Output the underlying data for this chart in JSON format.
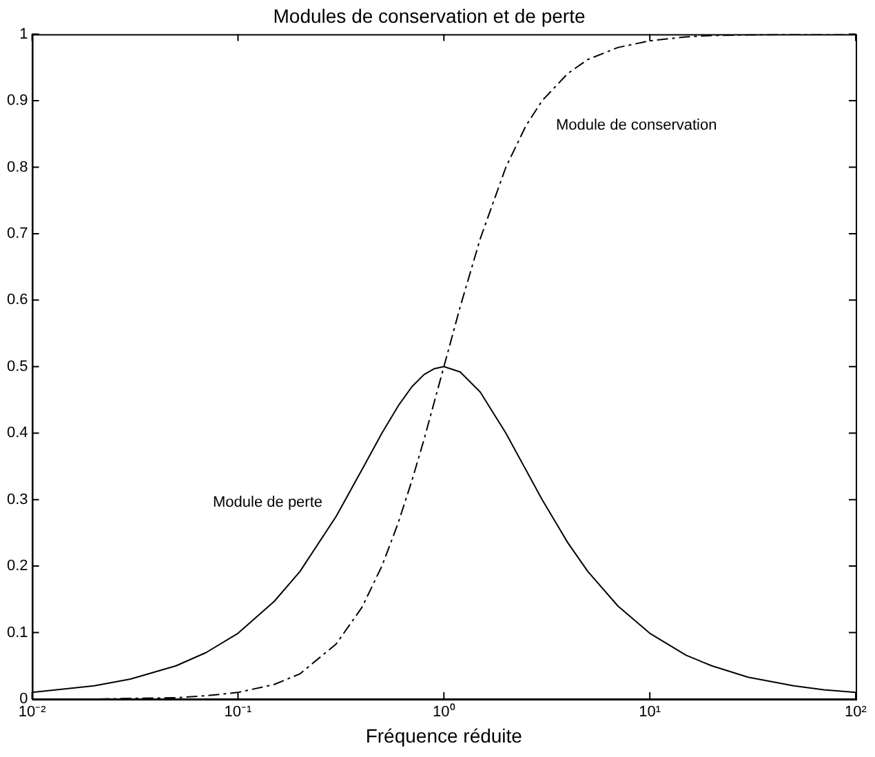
{
  "chart_data": {
    "type": "line",
    "title": "Modules de conservation et de perte",
    "xlabel": "Fréquence réduite",
    "log": "x",
    "x": [
      0.01,
      0.02,
      0.03,
      0.05,
      0.07,
      0.1,
      0.15,
      0.2,
      0.3,
      0.4,
      0.5,
      0.6,
      0.7,
      0.8,
      0.9,
      1,
      1.2,
      1.5,
      2,
      2.5,
      3,
      4,
      5,
      7,
      10,
      15,
      20,
      30,
      50,
      70,
      100
    ],
    "series": [
      {
        "name": "Module de perte",
        "color": "#000000",
        "line_style": "solid",
        "values": [
          0.01,
          0.02,
          0.03,
          0.05,
          0.07,
          0.099,
          0.147,
          0.192,
          0.275,
          0.345,
          0.4,
          0.441,
          0.47,
          0.488,
          0.497,
          0.5,
          0.492,
          0.462,
          0.4,
          0.345,
          0.3,
          0.235,
          0.192,
          0.14,
          0.099,
          0.066,
          0.05,
          0.033,
          0.02,
          0.014,
          0.01
        ]
      },
      {
        "name": "Module de conservation",
        "color": "#000000",
        "line_style": "dashdot",
        "values": [
          0.0,
          0.0,
          0.001,
          0.002,
          0.005,
          0.01,
          0.022,
          0.038,
          0.083,
          0.138,
          0.2,
          0.265,
          0.329,
          0.39,
          0.448,
          0.5,
          0.59,
          0.692,
          0.8,
          0.862,
          0.9,
          0.941,
          0.962,
          0.98,
          0.99,
          0.996,
          0.998,
          0.999,
          1.0,
          1.0,
          1.0
        ]
      }
    ],
    "xlim": [
      0.01,
      100
    ],
    "xticks": [
      {
        "value": 0.01,
        "label": "10⁻²"
      },
      {
        "value": 0.1,
        "label": "10⁻¹"
      },
      {
        "value": 1,
        "label": "10⁰"
      },
      {
        "value": 10,
        "label": "10¹"
      },
      {
        "value": 100,
        "label": "10²"
      }
    ],
    "ylim": [
      0,
      1
    ],
    "yticks": [
      0,
      0.1,
      0.2,
      0.3,
      0.4,
      0.5,
      0.6,
      0.7,
      0.8,
      0.9,
      1
    ],
    "grid": false,
    "legend": false,
    "marker": "none"
  }
}
